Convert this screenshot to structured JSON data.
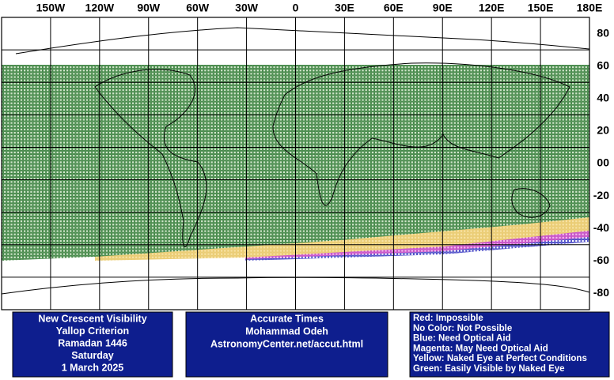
{
  "map": {
    "longitude_labels": [
      "150W",
      "120W",
      "90W",
      "60W",
      "30W",
      "0",
      "30E",
      "60E",
      "90E",
      "120E",
      "150E",
      "180E"
    ],
    "latitude_labels": [
      "80",
      "60",
      "40",
      "20",
      "00",
      "-20",
      "-40",
      "-60",
      "-80"
    ]
  },
  "info_boxes": [
    {
      "lines": [
        "New Crescent Visibility",
        "Yallop Criterion",
        "Ramadan 1446",
        "Saturday",
        "1 March 2025"
      ]
    },
    {
      "lines": [
        "Accurate Times",
        "Mohammad Odeh",
        "AstronomyCenter.net/accut.html"
      ]
    },
    {
      "lines": [
        "Red: Impossible",
        "No Color: Not Possible",
        "Blue: Need Optical Aid",
        "Magenta: May Need Optical Aid",
        "Yellow: Naked Eye at Perfect Conditions",
        "Green: Easily Visible by Naked Eye"
      ]
    }
  ]
}
